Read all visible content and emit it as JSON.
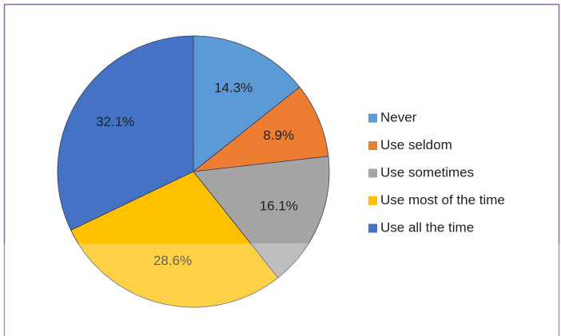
{
  "chart_data": {
    "type": "pie",
    "categories": [
      "Never",
      "Use seldom",
      "Use sometimes",
      "Use most of the time",
      "Use all the time"
    ],
    "values": [
      14.3,
      8.9,
      16.1,
      28.6,
      32.1
    ],
    "value_labels": [
      "14.3%",
      "8.9%",
      "16.1%",
      "28.6%",
      "32.1%"
    ],
    "colors": [
      "#5b9bd5",
      "#ed7d31",
      "#a5a5a5",
      "#ffc000",
      "#4472c4"
    ],
    "legend": "right"
  }
}
